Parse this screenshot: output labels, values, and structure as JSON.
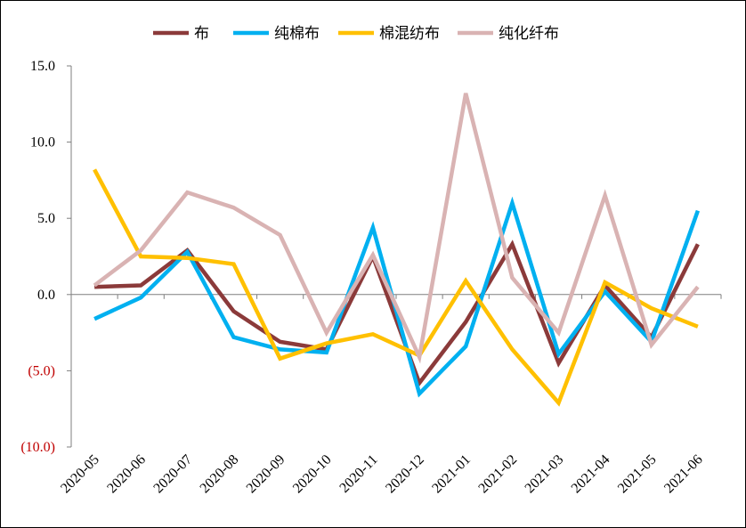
{
  "chart_data": {
    "type": "line",
    "title": "",
    "xlabel": "",
    "ylabel": "",
    "ylim": [
      -10,
      15
    ],
    "yticks": [
      {
        "value": 15,
        "label": "15.0",
        "color": "#000000"
      },
      {
        "value": 10,
        "label": "10.0",
        "color": "#000000"
      },
      {
        "value": 5,
        "label": "5.0",
        "color": "#000000"
      },
      {
        "value": 0,
        "label": "0.0",
        "color": "#000000"
      },
      {
        "value": -5,
        "label": "(5.0)",
        "color": "#c00000"
      },
      {
        "value": -10,
        "label": "(10.0)",
        "color": "#c00000"
      }
    ],
    "categories": [
      "2020-05",
      "2020-06",
      "2020-07",
      "2020-08",
      "2020-09",
      "2020-10",
      "2020-11",
      "2020-12",
      "2021-01",
      "2021-02",
      "2021-03",
      "2021-04",
      "2021-05",
      "2021-06"
    ],
    "grid": false,
    "legend_position": "top",
    "series": [
      {
        "name": "布",
        "color": "#8b3a3a",
        "values": [
          0.5,
          0.6,
          2.9,
          -1.1,
          -3.1,
          -3.6,
          2.5,
          -5.8,
          -1.8,
          3.3,
          -4.5,
          0.6,
          -2.8,
          3.3
        ]
      },
      {
        "name": "纯棉布",
        "color": "#00b0f0",
        "values": [
          -1.6,
          -0.2,
          2.8,
          -2.8,
          -3.6,
          -3.8,
          4.4,
          -6.5,
          -3.4,
          6.0,
          -3.9,
          0.2,
          -3.1,
          5.5
        ]
      },
      {
        "name": "棉混纺布",
        "color": "#ffc000",
        "values": [
          8.2,
          2.5,
          2.4,
          2.0,
          -4.2,
          -3.2,
          -2.6,
          -4.0,
          0.9,
          -3.6,
          -7.1,
          0.8,
          -0.9,
          -2.1
        ]
      },
      {
        "name": "纯化纤布",
        "color": "#d9b3b3",
        "values": [
          0.6,
          2.9,
          6.7,
          5.7,
          3.9,
          -2.5,
          2.6,
          -4.1,
          13.2,
          1.1,
          -2.5,
          6.5,
          -3.3,
          0.5
        ]
      }
    ]
  }
}
